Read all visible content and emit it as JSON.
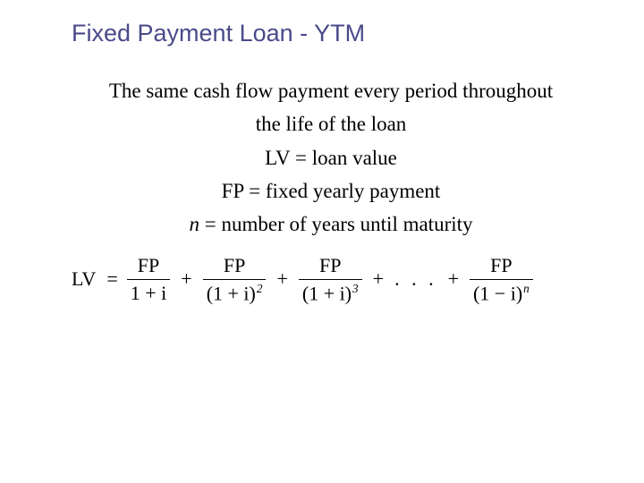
{
  "title": "Fixed Payment Loan - YTM",
  "colors": {
    "title": "#4a4a8a",
    "text": "#000000",
    "background": "#ffffff"
  },
  "lines": {
    "l1": "The same cash flow payment every period throughout",
    "l2": "the life of the loan",
    "l3_lhs": "LV",
    "l3_eq": " = ",
    "l3_rhs": "loan value",
    "l4_lhs": "FP",
    "l4_eq": " = ",
    "l4_rhs": "fixed yearly payment",
    "l5_lhs": "n",
    "l5_eq": " = ",
    "l5_rhs": "number of years until maturity"
  },
  "formula": {
    "lhs": "LV",
    "eq": " = ",
    "fp": "FP",
    "denom1": "1 + i",
    "denom_base": "(1 + i)",
    "denom_base_last": "(1 − i)",
    "exp2": "2",
    "exp3": "3",
    "expn": "n",
    "plus": "+",
    "dots": ". . ."
  }
}
